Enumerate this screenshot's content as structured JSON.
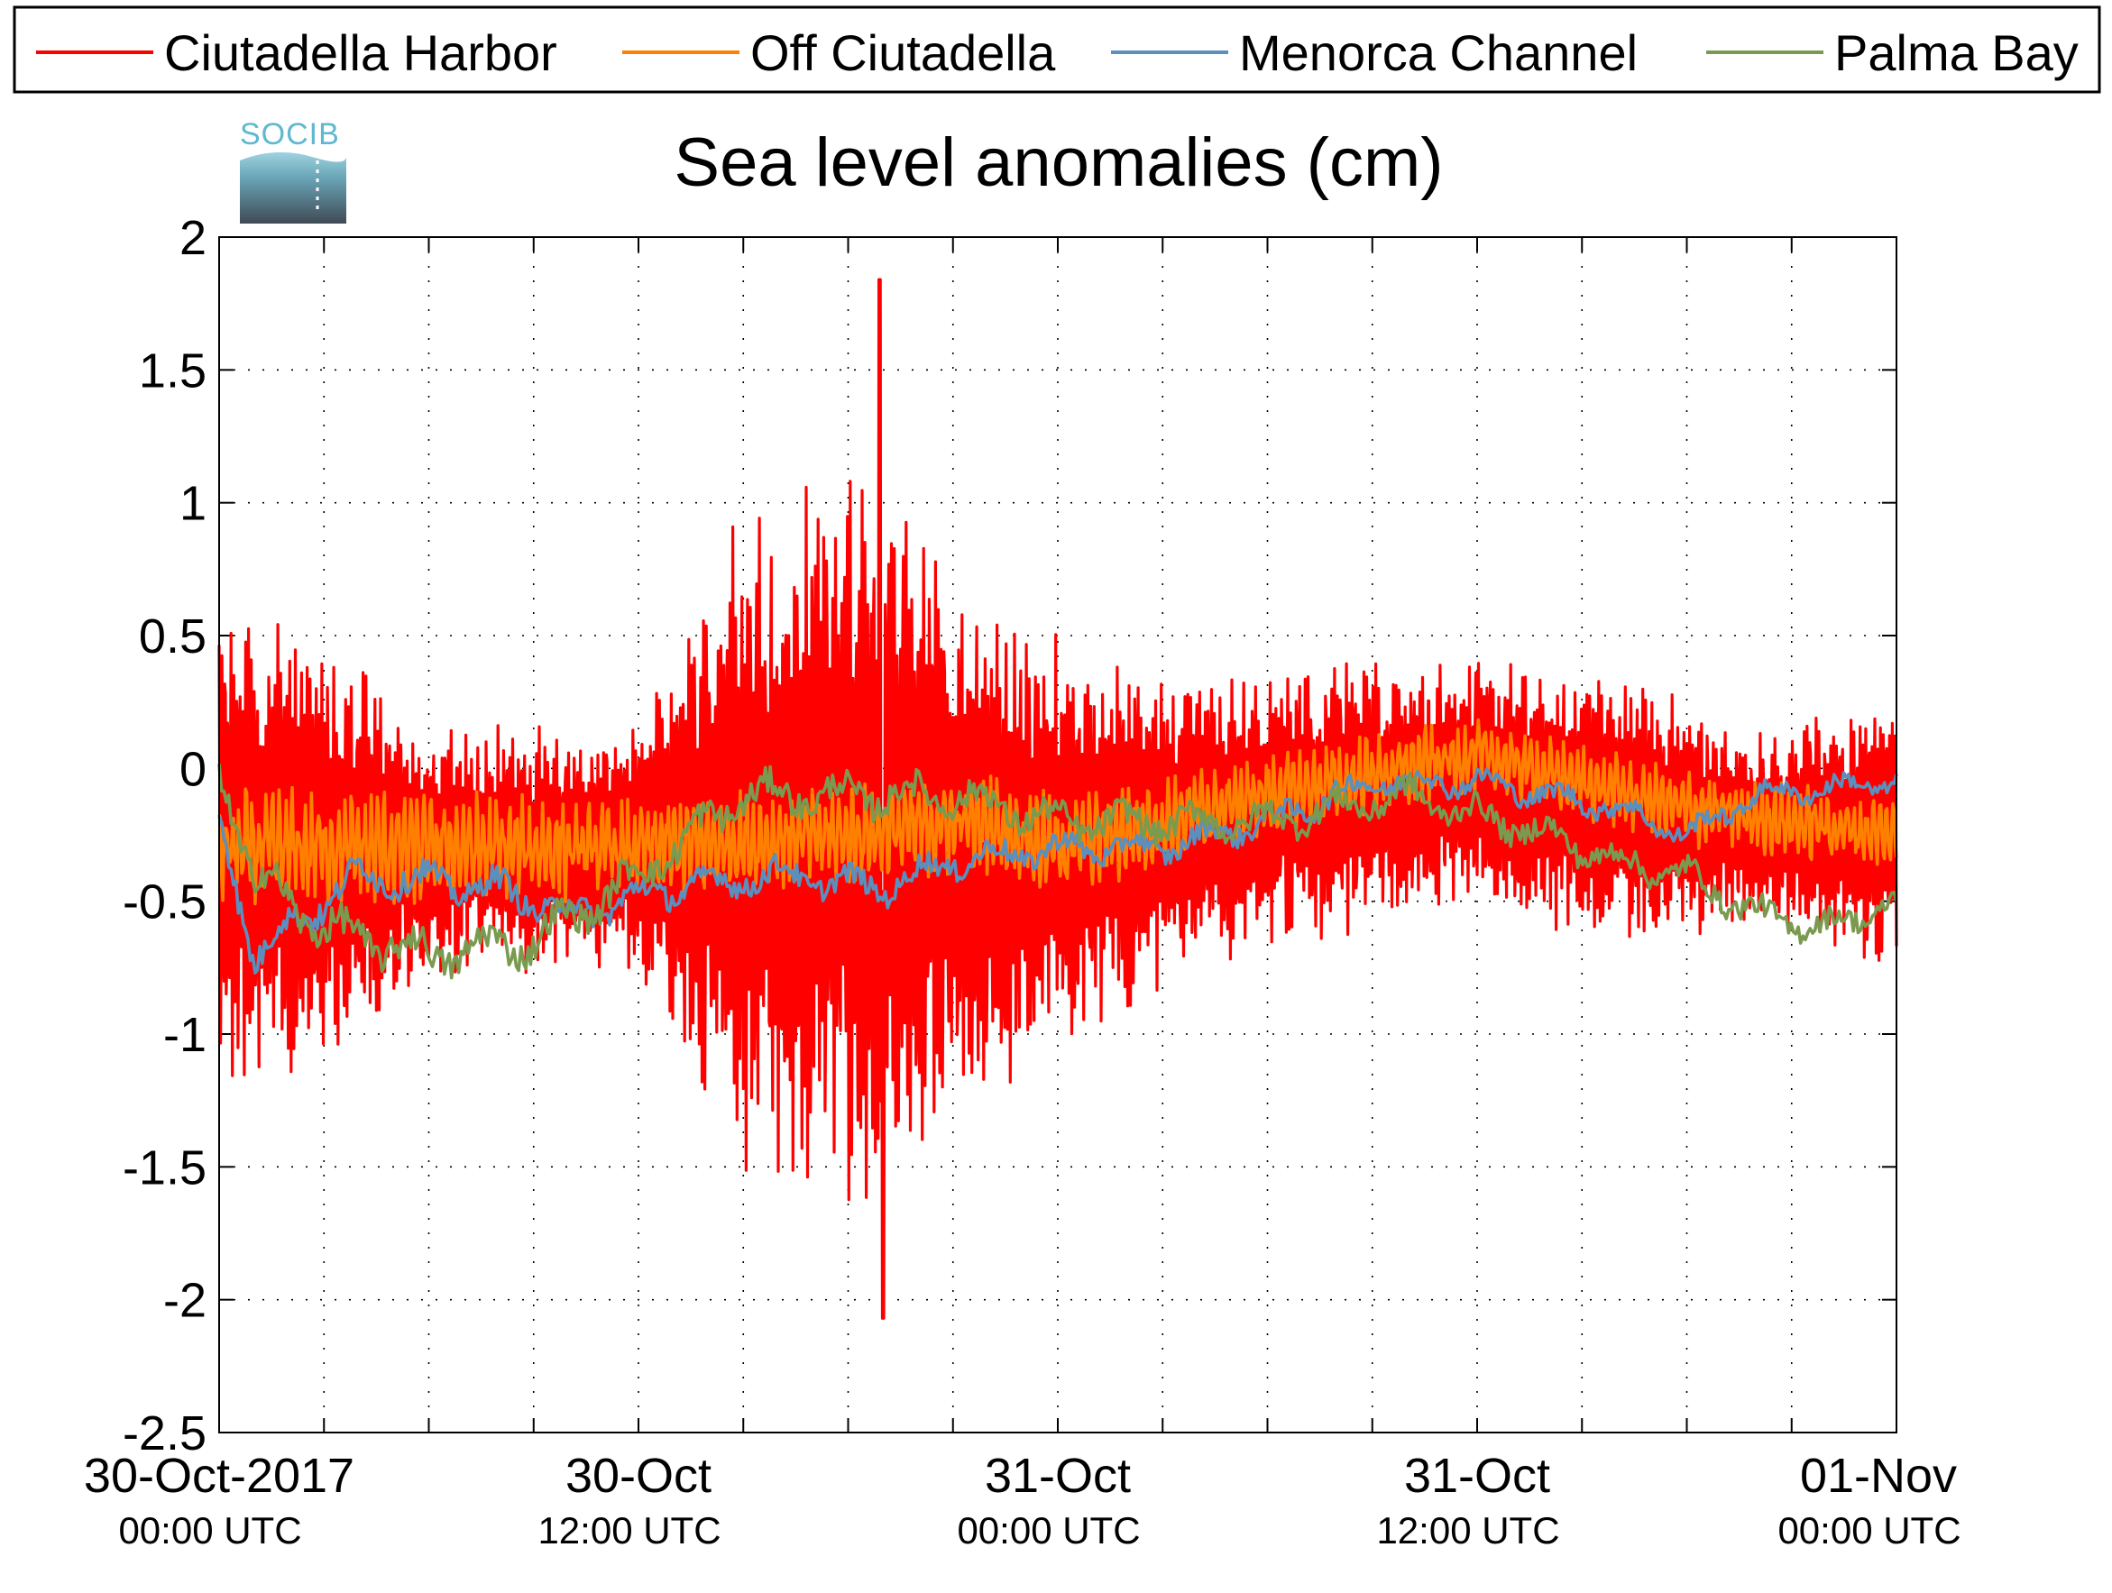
{
  "logo": {
    "text": "SOCIB",
    "color": "#5fb8d0"
  },
  "chart_data": {
    "type": "line",
    "title": "Sea level anomalies (cm)",
    "xlabel": "",
    "ylabel": "",
    "x_range_hours": [
      0,
      48
    ],
    "ylim": [
      -2.5,
      2
    ],
    "y_ticks": [
      {
        "value": 2,
        "label": "2"
      },
      {
        "value": 1.5,
        "label": "1.5"
      },
      {
        "value": 1,
        "label": "1"
      },
      {
        "value": 0.5,
        "label": "0.5"
      },
      {
        "value": 0,
        "label": "0"
      },
      {
        "value": -0.5,
        "label": "-0.5"
      },
      {
        "value": -1,
        "label": "-1"
      },
      {
        "value": -1.5,
        "label": "-1.5"
      },
      {
        "value": -2,
        "label": "-2"
      },
      {
        "value": -2.5,
        "label": "-2.5"
      }
    ],
    "x_ticks": [
      {
        "hour": 0,
        "date": "30-Oct-2017",
        "time": "00:00 UTC"
      },
      {
        "hour": 12,
        "date": "30-Oct",
        "time": "12:00 UTC"
      },
      {
        "hour": 24,
        "date": "31-Oct",
        "time": "00:00 UTC"
      },
      {
        "hour": 36,
        "date": "31-Oct",
        "time": "12:00 UTC"
      },
      {
        "hour": 48,
        "date": "01-Nov",
        "time": "00:00 UTC"
      }
    ],
    "grid": true,
    "legend_position": "top",
    "series": [
      {
        "name": "Ciutadella Harbor",
        "color": "#ff0000",
        "baseline": [
          [
            0,
            -0.3
          ],
          [
            6,
            -0.3
          ],
          [
            12,
            -0.3
          ],
          [
            18,
            -0.25
          ],
          [
            24,
            -0.3
          ],
          [
            30,
            -0.15
          ],
          [
            36,
            -0.05
          ],
          [
            42,
            -0.2
          ],
          [
            48,
            -0.25
          ]
        ],
        "amplitude": [
          [
            0,
            0.8
          ],
          [
            3,
            0.7
          ],
          [
            6,
            0.4
          ],
          [
            12,
            0.4
          ],
          [
            15,
            1.1
          ],
          [
            19,
            1.2
          ],
          [
            22,
            0.8
          ],
          [
            27,
            0.5
          ],
          [
            36,
            0.4
          ],
          [
            40,
            0.45
          ],
          [
            44,
            0.3
          ],
          [
            48,
            0.45
          ]
        ],
        "min_observed": -2.07,
        "max_observed": 1.84
      },
      {
        "name": "Off Ciutadella",
        "color": "#ff8000",
        "baseline": [
          [
            0,
            -0.3
          ],
          [
            6,
            -0.3
          ],
          [
            12,
            -0.3
          ],
          [
            18,
            -0.25
          ],
          [
            22,
            -0.2
          ],
          [
            24,
            -0.3
          ],
          [
            30,
            -0.1
          ],
          [
            36,
            0.05
          ],
          [
            42,
            -0.15
          ],
          [
            48,
            -0.25
          ]
        ],
        "amplitude": [
          [
            0,
            0.25
          ],
          [
            12,
            0.2
          ],
          [
            24,
            0.2
          ],
          [
            36,
            0.15
          ],
          [
            48,
            0.15
          ]
        ]
      },
      {
        "name": "Menorca Channel",
        "color": "#5b8fbe",
        "baseline": [
          [
            0,
            -0.2
          ],
          [
            1,
            -0.7
          ],
          [
            4,
            -0.4
          ],
          [
            8,
            -0.45
          ],
          [
            10,
            -0.55
          ],
          [
            13,
            -0.45
          ],
          [
            16,
            -0.4
          ],
          [
            19,
            -0.45
          ],
          [
            21,
            -0.35
          ],
          [
            24,
            -0.3
          ],
          [
            27,
            -0.3
          ],
          [
            30,
            -0.2
          ],
          [
            33,
            -0.05
          ],
          [
            36,
            -0.05
          ],
          [
            40,
            -0.15
          ],
          [
            42,
            -0.25
          ],
          [
            44,
            -0.1
          ],
          [
            48,
            -0.05
          ]
        ],
        "amplitude": [
          [
            0,
            0.1
          ],
          [
            48,
            0.06
          ]
        ]
      },
      {
        "name": "Palma Bay",
        "color": "#7a9a50",
        "baseline": [
          [
            0,
            0.0
          ],
          [
            1,
            -0.4
          ],
          [
            3,
            -0.6
          ],
          [
            6,
            -0.7
          ],
          [
            9,
            -0.65
          ],
          [
            12,
            -0.4
          ],
          [
            15,
            -0.1
          ],
          [
            18,
            -0.1
          ],
          [
            21,
            -0.1
          ],
          [
            24,
            -0.2
          ],
          [
            27,
            -0.2
          ],
          [
            30,
            -0.2
          ],
          [
            34,
            -0.1
          ],
          [
            38,
            -0.25
          ],
          [
            40,
            -0.35
          ],
          [
            42,
            -0.4
          ],
          [
            44,
            -0.55
          ],
          [
            46,
            -0.6
          ],
          [
            48,
            -0.5
          ]
        ],
        "amplitude": [
          [
            0,
            0.12
          ],
          [
            48,
            0.08
          ]
        ]
      }
    ]
  }
}
